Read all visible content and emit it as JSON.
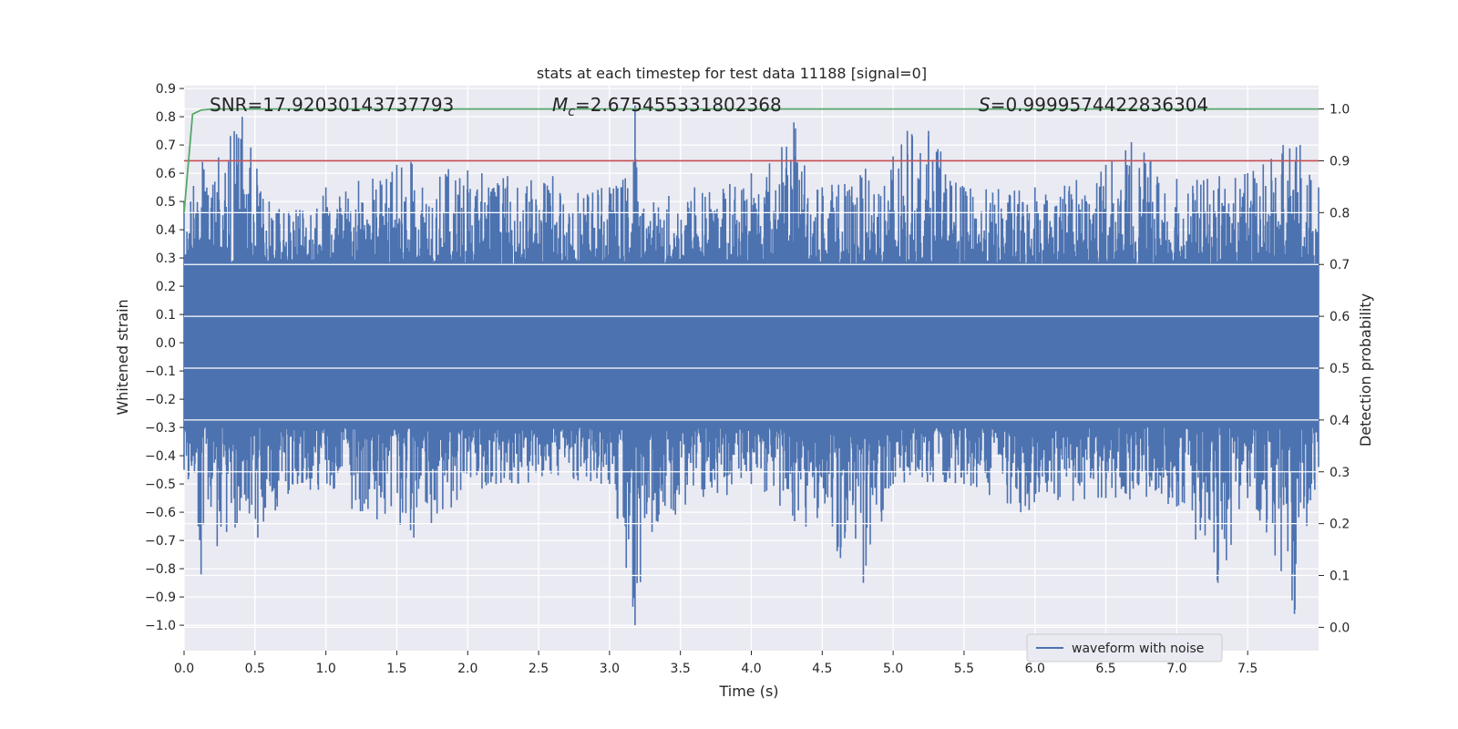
{
  "chart_data": {
    "type": "line",
    "title": "stats at each timestep for test data 11188 [signal=0]",
    "xlabel": "Time (s)",
    "ylabel": "Whitened strain",
    "y2label": "Detection probability",
    "xlim": [
      0.0,
      8.0
    ],
    "ylim": [
      -1.09,
      0.91
    ],
    "y2lim": [
      -0.045,
      1.045
    ],
    "x_ticks": [
      "0.0",
      "0.5",
      "1.0",
      "1.5",
      "2.0",
      "2.5",
      "3.0",
      "3.5",
      "4.0",
      "4.5",
      "5.0",
      "5.5",
      "6.0",
      "6.5",
      "7.0",
      "7.5"
    ],
    "y_ticks": [
      "0.9",
      "0.8",
      "0.7",
      "0.6",
      "0.5",
      "0.4",
      "0.3",
      "0.2",
      "0.1",
      "0.0",
      "−0.1",
      "−0.2",
      "−0.3",
      "−0.4",
      "−0.5",
      "−0.6",
      "−0.7",
      "−0.8",
      "−0.9",
      "−1.0"
    ],
    "y_tick_values": [
      0.9,
      0.8,
      0.7,
      0.6,
      0.5,
      0.4,
      0.3,
      0.2,
      0.1,
      0.0,
      -0.1,
      -0.2,
      -0.3,
      -0.4,
      -0.5,
      -0.6,
      -0.7,
      -0.8,
      -0.9,
      -1.0
    ],
    "y2_ticks": [
      "1.0",
      "0.9",
      "0.8",
      "0.7",
      "0.6",
      "0.5",
      "0.4",
      "0.3",
      "0.2",
      "0.1",
      "0.0"
    ],
    "y2_tick_values": [
      1.0,
      0.9,
      0.8,
      0.7,
      0.6,
      0.5,
      0.4,
      0.3,
      0.2,
      0.1,
      0.0
    ],
    "annotations": {
      "snr": "SNR=17.92030143737793",
      "mc_symbol": "M",
      "mc_sub": "c",
      "mc_value": "=2.675455331802368",
      "s_symbol": "S",
      "s_value": "=0.9999574422836304"
    },
    "threshold": {
      "value": 0.9,
      "axis": "right",
      "color": "#c44e52"
    },
    "series": [
      {
        "name": "waveform with noise",
        "axis": "left",
        "color": "#4c72b0",
        "envelope_top": [
          [
            0.0,
            0.5
          ],
          [
            0.13,
            0.64
          ],
          [
            0.41,
            0.8
          ],
          [
            0.6,
            0.5
          ],
          [
            1.0,
            0.55
          ],
          [
            1.5,
            0.63
          ],
          [
            1.6,
            0.64
          ],
          [
            2.0,
            0.61
          ],
          [
            2.1,
            0.6
          ],
          [
            2.6,
            0.59
          ],
          [
            3.0,
            0.55
          ],
          [
            3.17,
            0.64
          ],
          [
            3.18,
            0.84
          ],
          [
            3.2,
            0.5
          ],
          [
            3.6,
            0.55
          ],
          [
            4.0,
            0.6
          ],
          [
            4.3,
            0.78
          ],
          [
            4.5,
            0.55
          ],
          [
            5.0,
            0.66
          ],
          [
            5.1,
            0.75
          ],
          [
            5.25,
            0.75
          ],
          [
            5.5,
            0.55
          ],
          [
            6.0,
            0.55
          ],
          [
            6.5,
            0.63
          ],
          [
            6.68,
            0.71
          ],
          [
            7.0,
            0.58
          ],
          [
            7.3,
            0.59
          ],
          [
            7.5,
            0.6
          ],
          [
            7.75,
            0.7
          ],
          [
            7.87,
            0.7
          ],
          [
            8.0,
            0.55
          ]
        ],
        "envelope_bottom": [
          [
            0.0,
            -0.45
          ],
          [
            0.1,
            -0.65
          ],
          [
            0.12,
            -0.82
          ],
          [
            0.3,
            -0.67
          ],
          [
            0.52,
            -0.69
          ],
          [
            0.8,
            -0.5
          ],
          [
            1.62,
            -0.69
          ],
          [
            2.2,
            -0.5
          ],
          [
            3.0,
            -0.5
          ],
          [
            3.18,
            -1.0
          ],
          [
            3.3,
            -0.67
          ],
          [
            4.0,
            -0.5
          ],
          [
            4.79,
            -0.85
          ],
          [
            5.0,
            -0.5
          ],
          [
            5.5,
            -0.5
          ],
          [
            5.9,
            -0.6
          ],
          [
            6.5,
            -0.55
          ],
          [
            7.0,
            -0.58
          ],
          [
            7.29,
            -0.85
          ],
          [
            7.35,
            -0.77
          ],
          [
            7.5,
            -0.55
          ],
          [
            7.83,
            -0.96
          ],
          [
            8.0,
            -0.44
          ]
        ],
        "band": [
          -0.3,
          0.28
        ]
      },
      {
        "name": "detection probability",
        "axis": "right",
        "color": "#55a868",
        "x": [
          0.0,
          0.06,
          0.12,
          0.2,
          8.0
        ],
        "y": [
          0.8,
          0.99,
          0.998,
          1.0,
          1.0
        ]
      }
    ],
    "legend": {
      "entries": [
        "waveform with noise"
      ],
      "position": "lower-right"
    },
    "grid": true
  },
  "colors": {
    "plot_bg": "#eaeaf2",
    "grid": "#ffffff",
    "axis_text": "#262626"
  }
}
